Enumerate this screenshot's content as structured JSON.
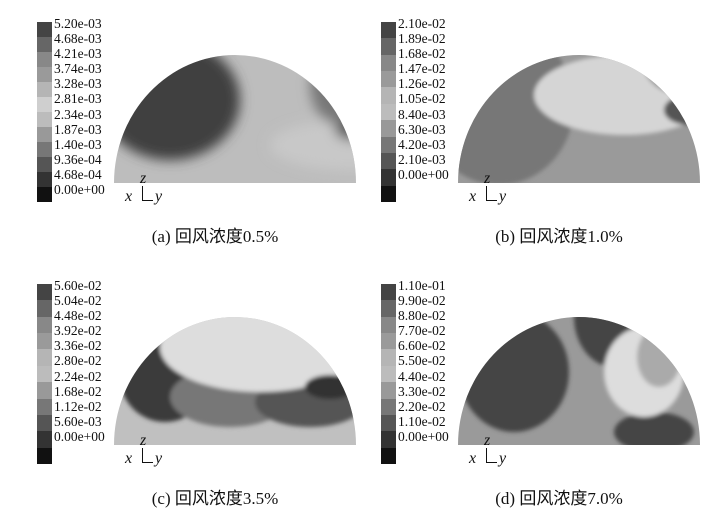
{
  "figure": {
    "panels": [
      {
        "caption": "(a) 回风浓度0.5%",
        "ticks": [
          "5.20e-03",
          "4.68e-03",
          "4.21e-03",
          "3.74e-03",
          "3.28e-03",
          "2.81e-03",
          "2.34e-03",
          "1.87e-03",
          "1.40e-03",
          "9.36e-04",
          "4.68e-04",
          "0.00e+00"
        ]
      },
      {
        "caption": "(b) 回风浓度1.0%",
        "ticks": [
          "2.10e-02",
          "1.89e-02",
          "1.68e-02",
          "1.47e-02",
          "1.26e-02",
          "1.05e-02",
          "8.40e-03",
          "6.30e-03",
          "4.20e-03",
          "2.10e-03",
          "0.00e+00"
        ]
      },
      {
        "caption": "(c) 回风浓度3.5%",
        "ticks": [
          "5.60e-02",
          "5.04e-02",
          "4.48e-02",
          "3.92e-02",
          "3.36e-02",
          "2.80e-02",
          "2.24e-02",
          "1.68e-02",
          "1.12e-02",
          "5.60e-03",
          "0.00e+00"
        ]
      },
      {
        "caption": "(d) 回风浓度7.0%",
        "ticks": [
          "1.10e-01",
          "9.90e-02",
          "8.80e-02",
          "7.70e-02",
          "6.60e-02",
          "5.50e-02",
          "4.40e-02",
          "3.30e-02",
          "2.20e-02",
          "1.10e-02",
          "0.00e+00"
        ]
      }
    ],
    "axis_labels": {
      "x": "x",
      "y": "y",
      "z": "z"
    }
  }
}
